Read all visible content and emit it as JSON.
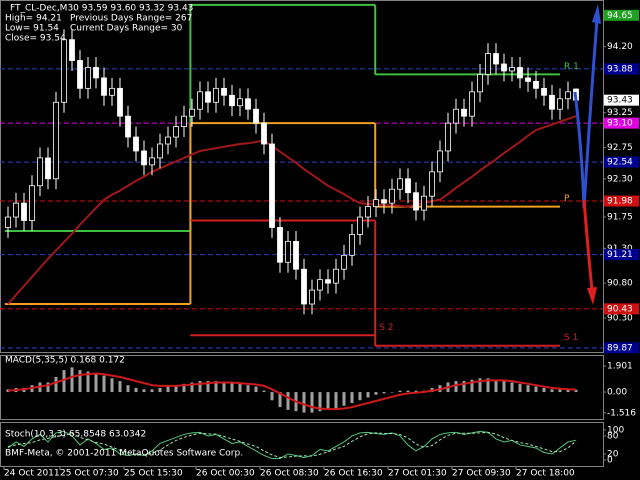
{
  "chart_data": [
    {
      "type": "candlestick",
      "title": "FT_CL-Dec,M30  93.59 93.60 93.32 93.43",
      "annotations": [
        "High= 94.21",
        "Previous Days Range= 267",
        "Low= 91.54",
        "Current Days Range= 30",
        "Close= 93.54"
      ],
      "categories": [
        "24 Oct 2011",
        null,
        null,
        null,
        null,
        null,
        null,
        "25 Oct 07:30",
        null,
        null,
        null,
        null,
        null,
        null,
        null,
        "25 Oct 15:30",
        null,
        null,
        null,
        null,
        null,
        null,
        null,
        null,
        "26 Oct 00:30",
        null,
        null,
        null,
        null,
        null,
        null,
        null,
        "26 Oct 08:30",
        null,
        null,
        null,
        null,
        null,
        null,
        null,
        "26 Oct 16:30",
        null,
        null,
        null,
        null,
        null,
        null,
        null,
        "27 Oct 01:30",
        null,
        null,
        null,
        null,
        null,
        null,
        null,
        "27 Oct 09:30",
        null,
        null,
        null,
        null,
        null,
        null,
        null,
        "27 Oct 18:00",
        null,
        null,
        null,
        null,
        null,
        null,
        null
      ],
      "open": [
        91.6,
        91.75,
        91.95,
        91.7,
        92.2,
        92.6,
        92.3,
        93.4,
        94.3,
        94.0,
        93.6,
        93.9,
        93.75,
        93.5,
        93.6,
        93.2,
        92.9,
        92.7,
        92.5,
        92.6,
        92.8,
        92.9,
        93.05,
        93.2,
        93.3,
        93.55,
        93.4,
        93.6,
        93.5,
        93.35,
        93.45,
        93.3,
        93.1,
        92.8,
        91.6,
        91.1,
        91.4,
        91.0,
        90.5,
        90.7,
        90.85,
        90.8,
        91.0,
        91.2,
        91.5,
        91.75,
        91.9,
        92.0,
        91.95,
        92.15,
        92.3,
        92.1,
        91.85,
        92.05,
        92.4,
        92.7,
        93.1,
        93.3,
        93.2,
        93.55,
        93.8,
        94.1,
        93.95,
        93.85,
        93.9,
        93.75,
        93.7,
        93.6,
        93.5,
        93.3,
        93.45,
        93.59
      ],
      "high": [
        91.9,
        92.1,
        92.1,
        92.35,
        92.75,
        92.75,
        93.55,
        94.45,
        94.45,
        94.15,
        94.05,
        94.05,
        93.9,
        93.75,
        93.75,
        93.35,
        93.05,
        92.85,
        92.75,
        92.95,
        93.05,
        93.2,
        93.35,
        93.45,
        93.7,
        93.7,
        93.75,
        93.75,
        93.65,
        93.6,
        93.6,
        93.45,
        93.25,
        92.95,
        91.75,
        91.55,
        91.55,
        91.15,
        90.85,
        91.0,
        91.0,
        91.15,
        91.35,
        91.65,
        91.9,
        92.05,
        92.15,
        92.15,
        92.3,
        92.45,
        92.45,
        92.25,
        92.2,
        92.55,
        92.85,
        93.25,
        93.45,
        93.45,
        93.7,
        93.95,
        94.25,
        94.25,
        94.1,
        94.05,
        94.05,
        93.9,
        93.85,
        93.75,
        93.65,
        93.6,
        93.7,
        93.6
      ],
      "low": [
        91.45,
        91.6,
        91.55,
        91.55,
        92.05,
        92.15,
        92.15,
        93.25,
        93.85,
        93.45,
        93.45,
        93.6,
        93.35,
        93.35,
        93.05,
        92.75,
        92.55,
        92.35,
        92.35,
        92.45,
        92.65,
        92.75,
        92.9,
        93.05,
        93.15,
        93.25,
        93.25,
        93.35,
        93.2,
        93.2,
        93.15,
        92.95,
        92.65,
        91.45,
        90.95,
        90.95,
        90.85,
        90.35,
        90.35,
        90.55,
        90.65,
        90.65,
        90.85,
        91.05,
        91.35,
        91.6,
        91.75,
        91.8,
        91.8,
        92.0,
        91.95,
        91.7,
        91.7,
        91.9,
        92.25,
        92.55,
        92.95,
        93.05,
        93.05,
        93.4,
        93.65,
        93.8,
        93.7,
        93.7,
        93.6,
        93.55,
        93.45,
        93.35,
        93.15,
        93.15,
        93.3,
        93.32
      ],
      "close": [
        91.75,
        91.95,
        91.7,
        92.2,
        92.6,
        92.3,
        93.4,
        94.3,
        94.0,
        93.6,
        93.9,
        93.75,
        93.5,
        93.6,
        93.2,
        92.9,
        92.7,
        92.5,
        92.6,
        92.8,
        92.9,
        93.05,
        93.2,
        93.3,
        93.55,
        93.4,
        93.6,
        93.5,
        93.35,
        93.45,
        93.3,
        93.1,
        92.8,
        91.6,
        91.1,
        91.4,
        91.0,
        90.5,
        90.7,
        90.85,
        90.8,
        91.0,
        91.2,
        91.5,
        91.75,
        91.9,
        92.0,
        91.95,
        92.15,
        92.3,
        92.1,
        91.85,
        92.05,
        92.4,
        92.7,
        93.1,
        93.3,
        93.2,
        93.55,
        93.8,
        94.1,
        93.95,
        93.85,
        93.9,
        93.75,
        93.7,
        93.6,
        93.5,
        93.3,
        93.45,
        93.55,
        93.43
      ],
      "up_color": "#000000",
      "down_color": "#ffffff",
      "wick_color": "#ffffff",
      "moving_average": {
        "color": "#a01818",
        "values": [
          90.5,
          90.63,
          90.76,
          90.89,
          91.02,
          91.15,
          91.27,
          91.39,
          91.51,
          91.64,
          91.76,
          91.88,
          92.0,
          92.07,
          92.13,
          92.2,
          92.27,
          92.33,
          92.4,
          92.45,
          92.5,
          92.55,
          92.6,
          92.65,
          92.7,
          92.72,
          92.74,
          92.76,
          92.78,
          92.8,
          92.81,
          92.83,
          92.85,
          92.77,
          92.69,
          92.61,
          92.53,
          92.44,
          92.36,
          92.28,
          92.2,
          92.14,
          92.08,
          92.01,
          91.95,
          91.94,
          91.93,
          91.92,
          91.92,
          91.91,
          91.9,
          91.93,
          91.95,
          91.98,
          92.0,
          92.08,
          92.17,
          92.25,
          92.33,
          92.42,
          92.5,
          92.58,
          92.67,
          92.75,
          92.83,
          92.92,
          93.0,
          93.04,
          93.08,
          93.12,
          93.16,
          93.2
        ]
      },
      "pivots": [
        {
          "name": "R 1",
          "color": "#40c040",
          "segments": [
            {
              "x": [
                -0.4,
                22.8
              ],
              "value": 91.55
            },
            {
              "x": [
                22.8,
                45.9
              ],
              "value": 94.8
            },
            {
              "x": [
                45.9,
                69
              ],
              "value": 93.8
            }
          ]
        },
        {
          "name": "P",
          "color": "#f0a020",
          "segments": [
            {
              "x": [
                -0.4,
                22.8
              ],
              "value": 90.5
            },
            {
              "x": [
                22.8,
                45.9
              ],
              "value": 93.1
            },
            {
              "x": [
                45.9,
                69
              ],
              "value": 91.9
            }
          ]
        },
        {
          "name": "S 1",
          "color": "#d02020",
          "segments": [
            {
              "x": [
                22.8,
                45.9
              ],
              "value": 91.7
            },
            {
              "x": [
                45.9,
                69
              ],
              "value": 89.9
            }
          ]
        },
        {
          "name": "S 2",
          "color": "#d02020",
          "segments": [
            {
              "x": [
                22.8,
                45.9
              ],
              "value": 90.05
            }
          ]
        }
      ],
      "ylim": [
        89.81,
        94.87
      ],
      "yticks": [
        {
          "value": 94.2,
          "label": "94.20"
        },
        93.25,
        92.75,
        {
          "value": 92.3,
          "label": "92.30"
        },
        91.75,
        {
          "value": 91.3,
          "label": "91.30"
        },
        {
          "value": 90.8,
          "label": "90.80"
        },
        {
          "value": 90.3,
          "label": "90.30"
        }
      ],
      "price_levels": [
        {
          "value": 94.65,
          "color": "#20a020",
          "line": false
        },
        {
          "value": 93.88,
          "color": "#000090",
          "line": true
        },
        {
          "value": 93.43,
          "color": "#ffffff",
          "line": false
        },
        {
          "value": 93.1,
          "label": "93.10",
          "color": "#e000e0",
          "line": true
        },
        {
          "value": 92.54,
          "color": "#000090",
          "line": true
        },
        {
          "value": 91.98,
          "color": "#d01010",
          "line": true
        },
        {
          "value": 91.21,
          "color": "#000090",
          "line": true
        },
        {
          "value": 90.43,
          "color": "#d01010",
          "line": true
        },
        {
          "value": 89.87,
          "color": "#000090",
          "line": true
        }
      ],
      "grid": false
    },
    {
      "type": "macd",
      "title": "MACD(5,35,5) 0.168 0.172",
      "histogram": {
        "color": "#a0a0a0",
        "values": [
          0.2,
          0.3,
          0.3,
          0.5,
          0.7,
          0.7,
          1.1,
          1.6,
          1.8,
          1.6,
          1.5,
          1.4,
          1.2,
          1.0,
          0.8,
          0.5,
          0.3,
          0.2,
          0.2,
          0.3,
          0.4,
          0.5,
          0.6,
          0.7,
          0.8,
          0.8,
          0.8,
          0.7,
          0.7,
          0.6,
          0.5,
          0.4,
          0.1,
          -0.6,
          -1.1,
          -1.3,
          -1.4,
          -1.5,
          -1.5,
          -1.4,
          -1.3,
          -1.2,
          -1.0,
          -0.8,
          -0.6,
          -0.4,
          -0.2,
          -0.1,
          0.0,
          0.1,
          0.1,
          0.1,
          0.1,
          0.3,
          0.5,
          0.7,
          0.8,
          0.8,
          0.9,
          1.0,
          1.0,
          0.9,
          0.8,
          0.7,
          0.6,
          0.5,
          0.4,
          0.3,
          0.2,
          0.2,
          0.2,
          0.168
        ]
      },
      "signal": {
        "color": "#d01818",
        "values": [
          0.1,
          0.15,
          0.2,
          0.3,
          0.4,
          0.5,
          0.7,
          0.9,
          1.1,
          1.25,
          1.3,
          1.35,
          1.3,
          1.2,
          1.1,
          0.95,
          0.8,
          0.65,
          0.5,
          0.45,
          0.45,
          0.45,
          0.5,
          0.55,
          0.6,
          0.65,
          0.7,
          0.7,
          0.7,
          0.65,
          0.6,
          0.55,
          0.45,
          0.2,
          -0.1,
          -0.4,
          -0.7,
          -0.9,
          -1.1,
          -1.2,
          -1.25,
          -1.25,
          -1.2,
          -1.1,
          -0.95,
          -0.8,
          -0.65,
          -0.5,
          -0.35,
          -0.2,
          -0.1,
          -0.05,
          0.0,
          0.1,
          0.2,
          0.35,
          0.5,
          0.6,
          0.7,
          0.8,
          0.85,
          0.85,
          0.85,
          0.8,
          0.7,
          0.6,
          0.5,
          0.4,
          0.3,
          0.25,
          0.2,
          0.172
        ]
      },
      "ylim": [
        -2.04,
        2.63
      ],
      "yticks": [
        1.901,
        {
          "value": 0,
          "label": "0.00"
        },
        -1.516
      ]
    },
    {
      "type": "stochastic",
      "title": "Stoch(10,3,3) 65.8548 63.0342",
      "series": [
        {
          "color": "#50c878",
          "style": "solid",
          "values": [
            40,
            60,
            45,
            70,
            85,
            60,
            90,
            95,
            80,
            50,
            70,
            55,
            35,
            40,
            20,
            15,
            20,
            15,
            30,
            55,
            65,
            75,
            85,
            90,
            92,
            80,
            85,
            70,
            55,
            60,
            45,
            30,
            15,
            5,
            5,
            20,
            15,
            8,
            15,
            35,
            30,
            45,
            60,
            80,
            90,
            92,
            88,
            85,
            90,
            80,
            50,
            30,
            45,
            70,
            85,
            90,
            92,
            85,
            90,
            95,
            92,
            70,
            60,
            65,
            50,
            45,
            40,
            25,
            20,
            40,
            60,
            65.8548
          ]
        },
        {
          "color": "#a0e0b0",
          "style": "dashed",
          "values": [
            45,
            50,
            55,
            58,
            67,
            72,
            78,
            82,
            88,
            75,
            67,
            58,
            53,
            43,
            32,
            25,
            18,
            17,
            22,
            33,
            50,
            65,
            75,
            83,
            89,
            87,
            86,
            78,
            70,
            62,
            53,
            45,
            30,
            17,
            8,
            10,
            13,
            14,
            13,
            19,
            27,
            37,
            45,
            62,
            77,
            87,
            90,
            88,
            88,
            85,
            73,
            53,
            42,
            48,
            67,
            82,
            89,
            89,
            89,
            90,
            92,
            86,
            74,
            65,
            58,
            53,
            45,
            37,
            28,
            28,
            40,
            63.0342
          ]
        }
      ],
      "ylim": [
        -20,
        123
      ],
      "yticks": [
        100,
        80,
        20,
        0
      ]
    }
  ],
  "footer": "BMF-Meta, © 2001-2011 MetaQuotes Software Corp."
}
